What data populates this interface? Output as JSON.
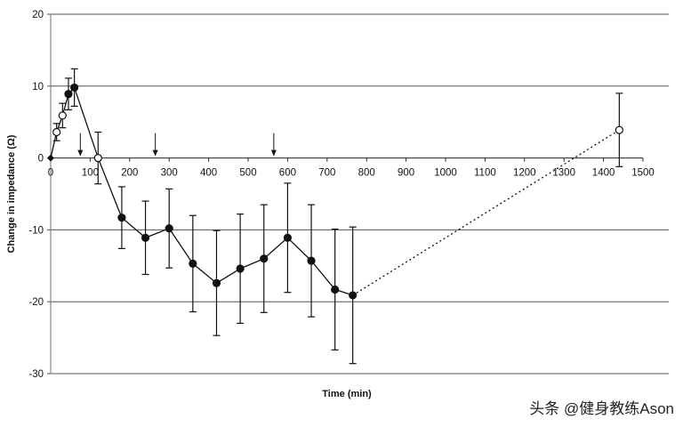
{
  "chart_data": {
    "type": "line",
    "title": "",
    "xlabel": "Time (min)",
    "ylabel": "Change in impedance (Ω)",
    "xlim": [
      0,
      1500
    ],
    "ylim": [
      -30,
      20
    ],
    "xticks": [
      0,
      100,
      200,
      300,
      400,
      500,
      600,
      700,
      800,
      900,
      1000,
      1100,
      1200,
      1300,
      1400,
      1500
    ],
    "yticks": [
      -30,
      -20,
      -10,
      0,
      10,
      20
    ],
    "grid": "horizontal",
    "points": [
      {
        "x": 0,
        "y": 0,
        "err": 0,
        "marker": "diamond"
      },
      {
        "x": 15,
        "y": 3.6,
        "err": 1.2,
        "marker": "open"
      },
      {
        "x": 30,
        "y": 5.9,
        "err": 1.7,
        "marker": "open"
      },
      {
        "x": 45,
        "y": 8.9,
        "err": 2.2,
        "marker": "filled"
      },
      {
        "x": 60,
        "y": 9.8,
        "err": 2.6,
        "marker": "filled"
      },
      {
        "x": 120,
        "y": 0,
        "err": 3.6,
        "marker": "open"
      },
      {
        "x": 180,
        "y": -8.3,
        "err": 4.3,
        "marker": "filled"
      },
      {
        "x": 240,
        "y": -11.1,
        "err": 5.1,
        "marker": "filled"
      },
      {
        "x": 300,
        "y": -9.8,
        "err": 5.5,
        "marker": "filled"
      },
      {
        "x": 360,
        "y": -14.7,
        "err": 6.7,
        "marker": "filled"
      },
      {
        "x": 420,
        "y": -17.4,
        "err": 7.3,
        "marker": "filled"
      },
      {
        "x": 480,
        "y": -15.4,
        "err": 7.6,
        "marker": "filled"
      },
      {
        "x": 540,
        "y": -14.0,
        "err": 7.5,
        "marker": "filled"
      },
      {
        "x": 600,
        "y": -11.1,
        "err": 7.6,
        "marker": "filled"
      },
      {
        "x": 660,
        "y": -14.3,
        "err": 7.8,
        "marker": "filled"
      },
      {
        "x": 720,
        "y": -18.3,
        "err": 8.4,
        "marker": "filled"
      },
      {
        "x": 765,
        "y": -19.1,
        "err": 9.5,
        "marker": "filled"
      },
      {
        "x": 1440,
        "y": 3.9,
        "err": 5.1,
        "marker": "open",
        "dotted": true
      }
    ],
    "arrows_at": [
      75,
      265,
      565
    ]
  },
  "watermark": "头条 @健身教练Ason"
}
